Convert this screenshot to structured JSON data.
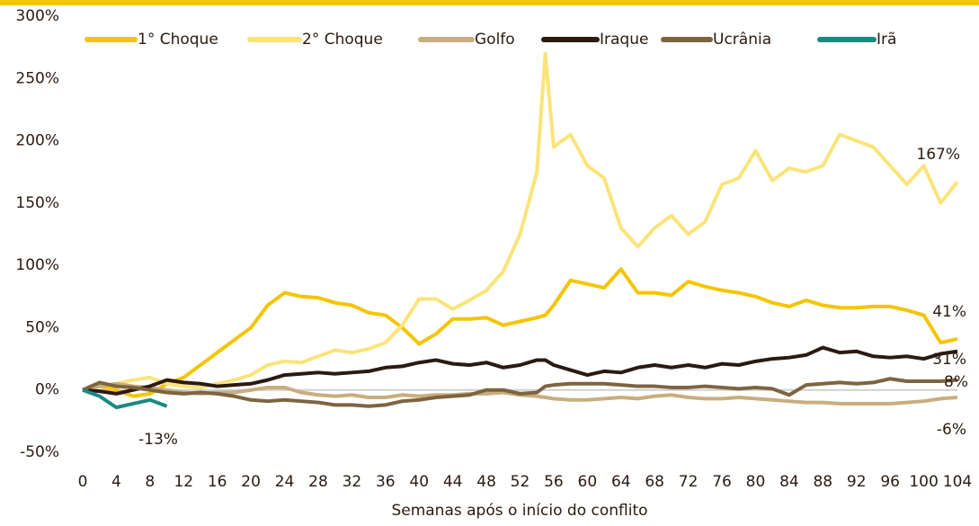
{
  "chart_data": {
    "type": "line",
    "xlabel": "Semanas após o início do conflito",
    "x": [
      0,
      2,
      4,
      6,
      8,
      10,
      12,
      14,
      16,
      18,
      20,
      22,
      24,
      26,
      28,
      30,
      32,
      34,
      36,
      38,
      40,
      42,
      44,
      46,
      48,
      50,
      52,
      54,
      55,
      56,
      58,
      60,
      62,
      64,
      66,
      68,
      70,
      72,
      74,
      76,
      78,
      80,
      82,
      84,
      86,
      88,
      90,
      92,
      94,
      96,
      98,
      100,
      102,
      104
    ],
    "series": [
      {
        "name": "1° Choque",
        "color": "#f5c400",
        "values": [
          0,
          3,
          0,
          -5,
          -3,
          5,
          10,
          20,
          30,
          40,
          50,
          68,
          78,
          75,
          74,
          70,
          68,
          62,
          60,
          50,
          37,
          45,
          57,
          57,
          58,
          52,
          55,
          58,
          60,
          68,
          88,
          85,
          82,
          97,
          78,
          78,
          76,
          87,
          83,
          80,
          78,
          75,
          70,
          67,
          72,
          68,
          66,
          66,
          67,
          67,
          64,
          60,
          38,
          41
        ]
      },
      {
        "name": "2° Choque",
        "color": "#fae47a",
        "values": [
          0,
          3,
          5,
          8,
          10,
          5,
          3,
          2,
          5,
          8,
          12,
          20,
          23,
          22,
          27,
          32,
          30,
          33,
          38,
          52,
          73,
          73,
          65,
          72,
          80,
          95,
          125,
          175,
          270,
          195,
          205,
          180,
          170,
          130,
          115,
          130,
          140,
          125,
          135,
          165,
          170,
          192,
          168,
          178,
          175,
          180,
          205,
          200,
          195,
          180,
          165,
          180,
          150,
          167
        ]
      },
      {
        "name": "Golfo",
        "color": "#c8ad7f",
        "values": [
          0,
          3,
          5,
          3,
          2,
          0,
          -2,
          -3,
          -2,
          -2,
          0,
          2,
          2,
          -2,
          -4,
          -5,
          -4,
          -6,
          -6,
          -4,
          -5,
          -4,
          -4,
          -3,
          -3,
          -2,
          -4,
          -5,
          -6,
          -7,
          -8,
          -8,
          -7,
          -6,
          -7,
          -5,
          -4,
          -6,
          -7,
          -7,
          -6,
          -7,
          -8,
          -9,
          -10,
          -10,
          -11,
          -11,
          -11,
          -11,
          -10,
          -9,
          -7,
          -6
        ]
      },
      {
        "name": "Iraque",
        "color": "#2b1a10",
        "values": [
          0,
          -1,
          -3,
          0,
          3,
          8,
          6,
          5,
          3,
          4,
          5,
          8,
          12,
          13,
          14,
          13,
          14,
          15,
          18,
          19,
          22,
          24,
          21,
          20,
          22,
          18,
          20,
          24,
          24,
          20,
          16,
          12,
          15,
          14,
          18,
          20,
          18,
          20,
          18,
          21,
          20,
          23,
          25,
          26,
          28,
          34,
          30,
          31,
          27,
          26,
          27,
          25,
          29,
          31
        ]
      },
      {
        "name": "Ucrânia",
        "color": "#7d6440",
        "values": [
          0,
          6,
          3,
          2,
          0,
          -2,
          -3,
          -2,
          -3,
          -5,
          -8,
          -9,
          -8,
          -9,
          -10,
          -12,
          -12,
          -13,
          -12,
          -9,
          -8,
          -6,
          -5,
          -4,
          0,
          0,
          -3,
          -2,
          3,
          4,
          5,
          5,
          5,
          4,
          3,
          3,
          2,
          2,
          3,
          2,
          1,
          2,
          1,
          -4,
          4,
          5,
          6,
          5,
          6,
          9,
          7,
          7,
          7,
          8
        ]
      },
      {
        "name": "Irã",
        "color": "#1a8a80",
        "x": [
          0,
          2,
          4,
          6,
          8,
          10
        ],
        "values": [
          0,
          -5,
          -14,
          -11,
          -8,
          -13
        ]
      }
    ],
    "annotations": [
      "167%",
      "41%",
      "31%",
      "8%",
      "-6%",
      "-13%"
    ],
    "xlim": [
      0,
      104
    ],
    "xticks": [
      0,
      4,
      8,
      12,
      16,
      20,
      24,
      28,
      32,
      36,
      40,
      44,
      48,
      52,
      56,
      60,
      64,
      68,
      72,
      76,
      80,
      84,
      88,
      92,
      96,
      100,
      104
    ],
    "ylim": [
      -50,
      300
    ],
    "yticks": [
      {
        "value": -50,
        "label": "-50%"
      },
      {
        "value": 0,
        "label": "0%"
      },
      {
        "value": 50,
        "label": "50%"
      },
      {
        "value": 100,
        "label": "100%"
      },
      {
        "value": 150,
        "label": "150%"
      },
      {
        "value": 200,
        "label": "200%"
      },
      {
        "value": 250,
        "label": "250%"
      },
      {
        "value": 300,
        "label": "300%"
      }
    ],
    "legend": "top"
  }
}
